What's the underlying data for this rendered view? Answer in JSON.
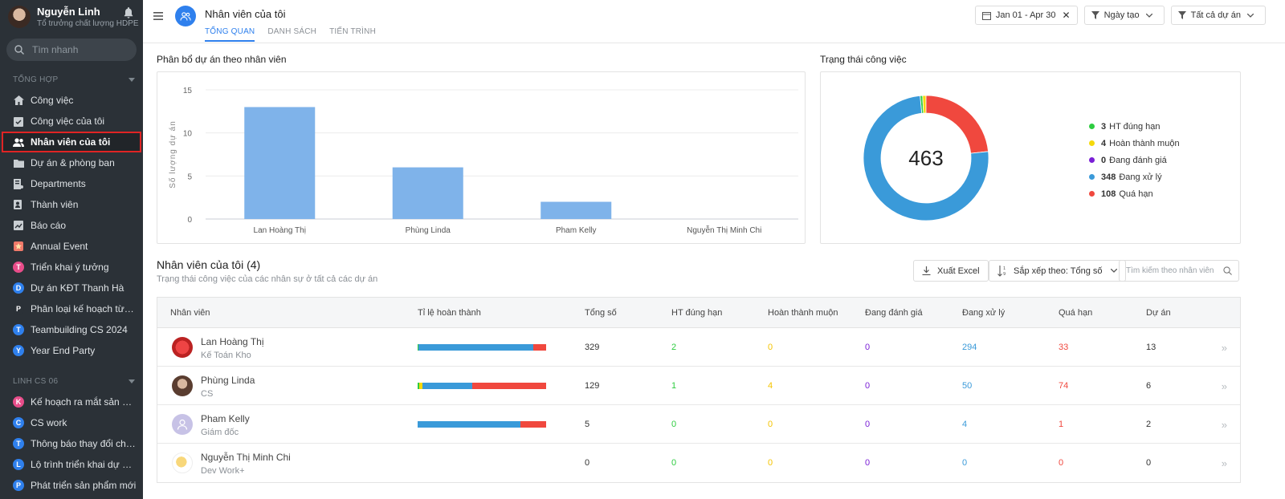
{
  "user": {
    "name": "Nguyễn Linh",
    "role": "Tổ trưởng chất lượng HDPE"
  },
  "search": {
    "placeholder": "Tìm nhanh"
  },
  "sidebar": {
    "section1": "TỔNG HỢP",
    "items": [
      {
        "label": "Công việc",
        "icon": "home-icon"
      },
      {
        "label": "Công việc của tôi",
        "icon": "task-check-icon"
      },
      {
        "label": "Nhân viên của tôi",
        "icon": "people-icon"
      },
      {
        "label": "Dự án & phòng ban",
        "icon": "folder-icon"
      },
      {
        "label": "Departments",
        "icon": "department-icon"
      },
      {
        "label": "Thành viên",
        "icon": "member-icon"
      },
      {
        "label": "Báo cáo",
        "icon": "report-icon"
      },
      {
        "label": "Annual Event",
        "icon": "event-icon"
      },
      {
        "label": "Triển khai ý tưởng",
        "badge": "T",
        "color": "#e84d8a"
      },
      {
        "label": "Dự án KĐT Thanh Hà",
        "badge": "D",
        "color": "#2f80ed"
      },
      {
        "label": "Phân loại kế hoạch từ thi...",
        "badge": "P",
        "color": "#2b3137"
      },
      {
        "label": "Teambuilding CS 2024",
        "badge": "T",
        "color": "#2f80ed"
      },
      {
        "label": "Year End Party",
        "badge": "Y",
        "color": "#2f80ed"
      }
    ],
    "section2": "LINH CS 06",
    "items2": [
      {
        "label": "Kế hoạch ra mắt sản phẩ...",
        "badge": "K",
        "color": "#e84d8a"
      },
      {
        "label": "CS work",
        "badge": "C",
        "color": "#2f80ed"
      },
      {
        "label": "Thông báo thay đổi chiến...",
        "badge": "T",
        "color": "#2f80ed"
      },
      {
        "label": "Lộ trình triển khai dự án ...",
        "badge": "L",
        "color": "#2f80ed"
      },
      {
        "label": "Phát triển sản phẩm mới",
        "badge": "P",
        "color": "#2f80ed"
      }
    ]
  },
  "header": {
    "title": "Nhân viên của tôi",
    "tabs": [
      "TỔNG QUAN",
      "DANH SÁCH",
      "TIẾN TRÌNH"
    ],
    "date_range": "Jan 01 - Apr 30",
    "sort_filter": "Ngày tạo",
    "project_filter": "Tất cả dự án"
  },
  "bar_card": {
    "title": "Phân bổ dự án theo nhân viên"
  },
  "donut_card": {
    "title": "Trạng thái công việc",
    "total": "463"
  },
  "chart_data": [
    {
      "type": "bar",
      "categories": [
        "Lan Hoàng Thị",
        "Phùng Linda",
        "Pham Kelly",
        "Nguyễn Thị Minh Chi"
      ],
      "values": [
        13,
        6,
        2,
        0
      ],
      "ylabel": "Số lượng dự án",
      "ylim": [
        0,
        15
      ],
      "yticks": [
        "0",
        "5",
        "10",
        "15"
      ],
      "color": "#7fb3ea"
    },
    {
      "type": "pie",
      "labels": [
        "HT đúng hạn",
        "Hoàn thành muộn",
        "Đang đánh giá",
        "Đang xử lý",
        "Quá hạn"
      ],
      "values": [
        3,
        4,
        0,
        348,
        108
      ],
      "counts": [
        "3",
        "4",
        "0",
        "348",
        "108"
      ],
      "colors": [
        "#2ecc40",
        "#f5d90a",
        "#7a1fd6",
        "#3a9ad9",
        "#f0483e"
      ]
    }
  ],
  "table_section": {
    "title": "Nhân viên của tôi (4)",
    "subtitle": "Trạng thái công việc của các nhân sự ở tất cả các dự án",
    "export": "Xuất Excel",
    "sort": "Sắp xếp theo: Tổng số",
    "search_placeholder": "Tìm kiếm theo nhân viên"
  },
  "table": {
    "headers": [
      "Nhân viên",
      "Tỉ lệ hoàn thành",
      "Tổng số",
      "HT đúng hạn",
      "Hoàn thành muộn",
      "Đang đánh giá",
      "Đang xử lý",
      "Quá hạn",
      "Dự án"
    ],
    "rows": [
      {
        "name": "Lan Hoàng Thị",
        "role": "Kế Toán Kho",
        "total": "329",
        "on_time": "2",
        "late": "0",
        "review": "0",
        "processing": "294",
        "overdue": "33",
        "projects": "13"
      },
      {
        "name": "Phùng Linda",
        "role": "CS",
        "total": "129",
        "on_time": "1",
        "late": "4",
        "review": "0",
        "processing": "50",
        "overdue": "74",
        "projects": "6"
      },
      {
        "name": "Pham Kelly",
        "role": "Giám đốc",
        "total": "5",
        "on_time": "0",
        "late": "0",
        "review": "0",
        "processing": "4",
        "overdue": "1",
        "projects": "2"
      },
      {
        "name": "Nguyễn Thị Minh Chi",
        "role": "Dev Work+",
        "total": "0",
        "on_time": "0",
        "late": "0",
        "review": "0",
        "processing": "0",
        "overdue": "0",
        "projects": "0"
      }
    ]
  }
}
